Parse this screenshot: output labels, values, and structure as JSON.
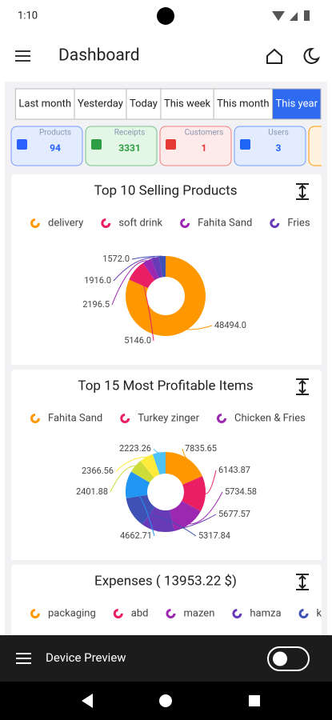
{
  "status_bar": {
    "time": "1:10"
  },
  "app_bar": {
    "title": "Dashboard"
  },
  "tabs": {
    "items": [
      "Last month",
      "Yesterday",
      "Today",
      "This week",
      "This month",
      "This year"
    ],
    "selected": 5
  },
  "stats": [
    {
      "label": "Products",
      "value": 94,
      "color": "#2962ff",
      "bg": "#e3ecff"
    },
    {
      "label": "Receipts",
      "value": 3331,
      "color": "#2e9e44",
      "bg": "#e4f6e6"
    },
    {
      "label": "Customers",
      "value": 1,
      "color": "#e53935",
      "bg": "#fdeaea"
    },
    {
      "label": "Users",
      "value": 3,
      "color": "#1e66f5",
      "bg": "#e3ecff"
    }
  ],
  "charts": [
    {
      "type": "donut",
      "title": "Top 10 Selling Products",
      "legend": [
        {
          "name": "delivery",
          "color": "#ff9800"
        },
        {
          "name": "soft drink",
          "color": "#e91e63"
        },
        {
          "name": "Fahita Sand",
          "color": "#9c27b0"
        },
        {
          "name": "Fries",
          "color": "#673ab7"
        }
      ],
      "values": [
        48494,
        5146,
        2196.5,
        1916,
        1572
      ],
      "value_labels": [
        "48494.0",
        "5146.0",
        "2196.5",
        "1916.0",
        "1572.0"
      ],
      "colors": [
        "#ff9800",
        "#e91e63",
        "#9c27b0",
        "#673ab7",
        "#3f51b5"
      ]
    },
    {
      "type": "donut",
      "title": "Top 15 Most Profitable Items",
      "legend": [
        {
          "name": "Fahita Sand",
          "color": "#ff9800"
        },
        {
          "name": "Turkey zinger",
          "color": "#e91e63"
        },
        {
          "name": "Chicken & Fries",
          "color": "#9c27b0"
        }
      ],
      "values": [
        7835.65,
        6143.87,
        5734.58,
        5677.57,
        5317.84,
        4662.71,
        2401.88,
        2366.56,
        2223.26
      ],
      "colors": [
        "#ff9800",
        "#e91e63",
        "#9c27b0",
        "#673ab7",
        "#3f51b5",
        "#2196f3",
        "#cddc39",
        "#ffeb3b",
        "#4fc3f7"
      ]
    },
    {
      "type": "legend-only",
      "title": "Expenses ( 13953.22 $)",
      "legend": [
        {
          "name": "packaging",
          "color": "#ff9800"
        },
        {
          "name": "abd",
          "color": "#e91e63"
        },
        {
          "name": "mazen",
          "color": "#9c27b0"
        },
        {
          "name": "hamza",
          "color": "#673ab7"
        },
        {
          "name": "k",
          "color": "#3f51b5"
        }
      ]
    }
  ],
  "bottom_bar": {
    "label": "Device Preview"
  }
}
